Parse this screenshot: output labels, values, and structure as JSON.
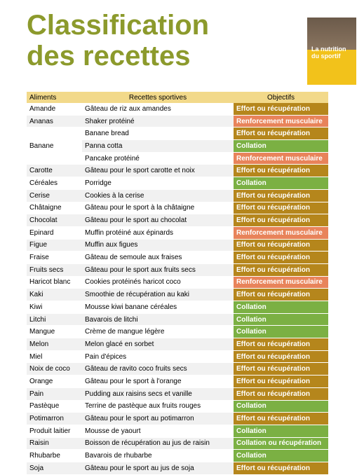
{
  "header": {
    "title_lines": [
      "Classification",
      "des recettes"
    ]
  },
  "book": {
    "title": "La nutrition du sportif"
  },
  "table": {
    "headers": [
      "Aliments",
      "Recettes sportives",
      "Objectifs"
    ],
    "rows": [
      {
        "aliment": "Amande",
        "recettes": [
          {
            "recette": "Gâteau de riz aux amandes",
            "objectif": "Effort ou récupération",
            "color": "#b5861c"
          }
        ]
      },
      {
        "aliment": "Ananas",
        "recettes": [
          {
            "recette": "Shaker protéiné",
            "objectif": "Renforcement musculaire",
            "color": "#e8835a"
          }
        ]
      },
      {
        "aliment": "Banane",
        "recettes": [
          {
            "recette": "Banane bread",
            "objectif": "Effort ou récupération",
            "color": "#b5861c"
          },
          {
            "recette": "Panna cotta",
            "objectif": "Collation",
            "color": "#7bb043"
          },
          {
            "recette": "Pancake protéiné",
            "objectif": "Renforcement musculaire",
            "color": "#e8835a"
          }
        ]
      },
      {
        "aliment": "Carotte",
        "recettes": [
          {
            "recette": "Gâteau pour le sport carotte et noix",
            "objectif": "Effort ou récupération",
            "color": "#b5861c"
          }
        ]
      },
      {
        "aliment": "Céréales",
        "recettes": [
          {
            "recette": "Porridge",
            "objectif": "Collation",
            "color": "#7bb043"
          }
        ]
      },
      {
        "aliment": "Cerise",
        "recettes": [
          {
            "recette": "Cookies à la cerise",
            "objectif": "Effort ou récupération",
            "color": "#b5861c"
          }
        ]
      },
      {
        "aliment": "Châtaigne",
        "recettes": [
          {
            "recette": "Gâteau pour le sport à la châtaigne",
            "objectif": "Effort ou récupération",
            "color": "#b5861c"
          }
        ]
      },
      {
        "aliment": "Chocolat",
        "recettes": [
          {
            "recette": "Gâteau pour le sport au chocolat",
            "objectif": "Effort ou récupération",
            "color": "#b5861c"
          }
        ]
      },
      {
        "aliment": "Epinard",
        "recettes": [
          {
            "recette": "Muffin protéiné aux épinards",
            "objectif": "Renforcement musculaire",
            "color": "#e8835a"
          }
        ]
      },
      {
        "aliment": "Figue",
        "recettes": [
          {
            "recette": "Muffin aux figues",
            "objectif": "Effort ou récupération",
            "color": "#b5861c"
          }
        ]
      },
      {
        "aliment": "Fraise",
        "recettes": [
          {
            "recette": "Gâteau de semoule aux fraises",
            "objectif": "Effort ou récupération",
            "color": "#b5861c"
          }
        ]
      },
      {
        "aliment": "Fruits secs",
        "recettes": [
          {
            "recette": "Gâteau pour le sport aux fruits secs",
            "objectif": "Effort ou récupération",
            "color": "#b5861c"
          }
        ]
      },
      {
        "aliment": "Haricot blanc",
        "recettes": [
          {
            "recette": "Cookies protéinés haricot coco",
            "objectif": "Renforcement musculaire",
            "color": "#e8835a"
          }
        ]
      },
      {
        "aliment": "Kaki",
        "recettes": [
          {
            "recette": "Smoothie de récupération au kaki",
            "objectif": "Effort ou récupération",
            "color": "#b5861c"
          }
        ]
      },
      {
        "aliment": "Kiwi",
        "recettes": [
          {
            "recette": "Mousse kiwi banane céréales",
            "objectif": "Collation",
            "color": "#7bb043"
          }
        ]
      },
      {
        "aliment": "Litchi",
        "recettes": [
          {
            "recette": "Bavarois de litchi",
            "objectif": "Collation",
            "color": "#7bb043"
          }
        ]
      },
      {
        "aliment": "Mangue",
        "recettes": [
          {
            "recette": "Crème de mangue légère",
            "objectif": "Collation",
            "color": "#7bb043"
          }
        ]
      },
      {
        "aliment": "Melon",
        "recettes": [
          {
            "recette": "Melon glacé en sorbet",
            "objectif": "Effort ou récupération",
            "color": "#b5861c"
          }
        ]
      },
      {
        "aliment": "Miel",
        "recettes": [
          {
            "recette": "Pain d'épices",
            "objectif": "Effort ou récupération",
            "color": "#b5861c"
          }
        ]
      },
      {
        "aliment": "Noix de coco",
        "recettes": [
          {
            "recette": "Gâteau de ravito coco fruits secs",
            "objectif": "Effort ou récupération",
            "color": "#b5861c"
          }
        ]
      },
      {
        "aliment": "Orange",
        "recettes": [
          {
            "recette": "Gâteau pour le sport à l'orange",
            "objectif": "Effort ou récupération",
            "color": "#b5861c"
          }
        ]
      },
      {
        "aliment": "Pain",
        "recettes": [
          {
            "recette": "Pudding aux raisins secs et vanille",
            "objectif": "Effort ou récupération",
            "color": "#b5861c"
          }
        ]
      },
      {
        "aliment": "Pastèque",
        "recettes": [
          {
            "recette": "Terrine de pastèque aux fruits rouges",
            "objectif": "Collation",
            "color": "#7bb043"
          }
        ]
      },
      {
        "aliment": "Potimarron",
        "recettes": [
          {
            "recette": "Gâteau pour le sport au potimarron",
            "objectif": "Effort ou récupération",
            "color": "#b5861c"
          }
        ]
      },
      {
        "aliment": "Produit laitier",
        "recettes": [
          {
            "recette": "Mousse de yaourt",
            "objectif": "Collation",
            "color": "#7bb043"
          }
        ]
      },
      {
        "aliment": "Raisin",
        "recettes": [
          {
            "recette": "Boisson de récupération au jus de raisin",
            "objectif": "Collation ou récupération",
            "color": "#7bb043"
          }
        ]
      },
      {
        "aliment": "Rhubarbe",
        "recettes": [
          {
            "recette": "Bavarois de rhubarbe",
            "objectif": "Collation",
            "color": "#7bb043"
          }
        ]
      },
      {
        "aliment": "Soja",
        "recettes": [
          {
            "recette": "Gâteau pour le sport au jus de soja",
            "objectif": "Effort ou récupération",
            "color": "#b5861c"
          }
        ]
      }
    ]
  }
}
